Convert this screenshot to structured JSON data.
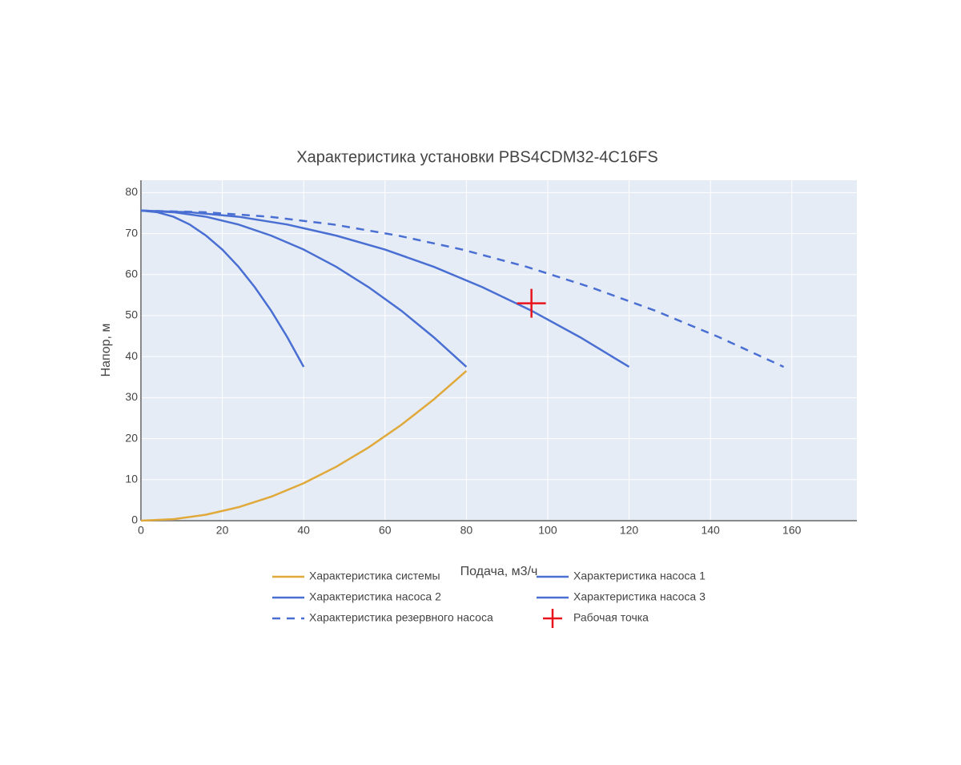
{
  "chart_data": {
    "type": "line",
    "title": "Характеристика установки PBS4CDM32-4C16FS",
    "x_label": "Подача, м3/ч",
    "y_label": "Напор, м",
    "xlim": [
      0,
      176
    ],
    "ylim": [
      0,
      83
    ],
    "xticks": [
      0,
      20,
      40,
      60,
      80,
      100,
      120,
      140,
      160
    ],
    "yticks": [
      0,
      10,
      20,
      30,
      40,
      50,
      60,
      70,
      80
    ],
    "grid": true,
    "series": [
      {
        "name": "Характеристика системы",
        "color": "#e0a93a",
        "dash": "solid",
        "x": [
          0,
          8,
          16,
          24,
          32,
          40,
          48,
          56,
          64,
          72,
          80
        ],
        "values": [
          0,
          0.37,
          1.46,
          3.29,
          5.84,
          9.13,
          13.14,
          17.89,
          23.36,
          29.57,
          36.5
        ]
      },
      {
        "name": "Характеристика насоса 1",
        "color": "#4a6fd3",
        "dash": "solid",
        "x": [
          0,
          4,
          8,
          12,
          16,
          20,
          24,
          28,
          32,
          36,
          40
        ],
        "values": [
          75.6,
          75.2,
          74.1,
          72.2,
          69.5,
          66.1,
          61.9,
          56.9,
          51.2,
          44.7,
          37.5
        ]
      },
      {
        "name": "Характеристика насоса 2",
        "color": "#4a6fd3",
        "dash": "solid",
        "x": [
          0,
          8,
          16,
          24,
          32,
          40,
          48,
          56,
          64,
          72,
          80
        ],
        "values": [
          75.6,
          75.2,
          74.1,
          72.2,
          69.5,
          66.1,
          61.9,
          56.9,
          51.2,
          44.7,
          37.5
        ]
      },
      {
        "name": "Характеристика насоса 3",
        "color": "#4a6fd3",
        "dash": "solid",
        "x": [
          0,
          12,
          24,
          36,
          48,
          60,
          72,
          84,
          96,
          108,
          120
        ],
        "values": [
          75.6,
          75.2,
          74.1,
          72.2,
          69.5,
          66.1,
          61.9,
          56.9,
          51.2,
          44.7,
          37.5
        ]
      },
      {
        "name": "Характеристика резервного насоса",
        "color": "#4a6fd3",
        "dash": "dash",
        "x": [
          0,
          15.8,
          31.6,
          47.4,
          63.2,
          79,
          94.8,
          110.6,
          126.4,
          142.2,
          158
        ],
        "values": [
          75.6,
          75.2,
          74.1,
          72.2,
          69.5,
          66.1,
          61.9,
          56.9,
          51.2,
          44.7,
          37.5
        ]
      },
      {
        "name": "Рабочая точка",
        "color": "#e8141c",
        "marker": "cross",
        "x": [
          96
        ],
        "values": [
          53
        ]
      }
    ]
  }
}
